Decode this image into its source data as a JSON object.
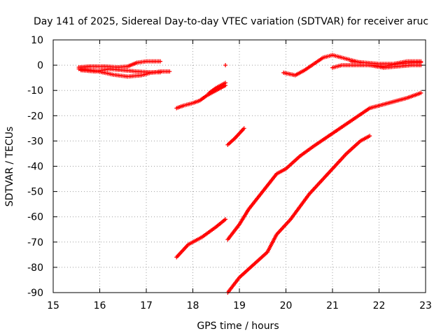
{
  "chart_data": {
    "type": "scatter",
    "title": "Day 141 of 2025, Sidereal Day-to-day VTEC variation (SDTVAR) for receiver aruc",
    "xlabel": "GPS time / hours",
    "ylabel": "SDTVAR / TECUs",
    "xlim": [
      15,
      23
    ],
    "ylim": [
      -90,
      10
    ],
    "xticks": [
      "15",
      "16",
      "17",
      "18",
      "19",
      "20",
      "21",
      "22",
      "23"
    ],
    "yticks": [
      "10",
      "0",
      "-10",
      "-20",
      "-30",
      "-40",
      "-50",
      "-60",
      "-70",
      "-80",
      "-90"
    ],
    "grid": true,
    "marker": "+",
    "color": "#ff0000",
    "series": [
      {
        "x": [
          15.55,
          15.7,
          15.9,
          16.1,
          16.3,
          16.6,
          16.9,
          17.1,
          17.3,
          17.5
        ],
        "y": [
          -1.5,
          -1.7,
          -2.2,
          -3.0,
          -3.8,
          -4.5,
          -4.0,
          -3.0,
          -2.5,
          -2.5
        ]
      },
      {
        "x": [
          15.55,
          15.8,
          16.1,
          16.4,
          16.6,
          16.8,
          17.0,
          17.3
        ],
        "y": [
          -0.8,
          -0.5,
          -0.5,
          -0.8,
          -0.5,
          1.0,
          1.5,
          1.5
        ]
      },
      {
        "x": [
          15.6,
          15.9,
          16.2,
          16.5,
          16.8,
          17.1,
          17.3
        ],
        "y": [
          -2.0,
          -2.5,
          -1.5,
          -2.0,
          -2.5,
          -2.8,
          -2.8
        ]
      },
      {
        "x": [
          18.7
        ],
        "y": [
          0
        ]
      },
      {
        "x": [
          17.65,
          17.8,
          18.0,
          18.15,
          18.3,
          18.5,
          18.7
        ],
        "y": [
          -17,
          -16,
          -15,
          -14,
          -12,
          -10,
          -8
        ]
      },
      {
        "x": [
          18.35,
          18.5,
          18.7
        ],
        "y": [
          -11,
          -9,
          -7
        ]
      },
      {
        "x": [
          18.75,
          18.9,
          19.1
        ],
        "y": [
          -31.5,
          -29,
          -25
        ]
      },
      {
        "x": [
          17.65,
          17.9,
          18.2,
          18.5,
          18.7
        ],
        "y": [
          -76,
          -71,
          -68,
          -64,
          -61
        ]
      },
      {
        "x": [
          18.75,
          19.0,
          19.2,
          19.5,
          19.8,
          20.0,
          20.3,
          20.6,
          21.0,
          21.4,
          21.8,
          22.2,
          22.6,
          22.9
        ],
        "y": [
          -69,
          -63,
          -57,
          -50,
          -43,
          -41,
          -36,
          -32,
          -27,
          -22,
          -17,
          -15,
          -13,
          -11
        ]
      },
      {
        "x": [
          18.75,
          19.0,
          19.3,
          19.6,
          19.8,
          20.1,
          20.5,
          20.9,
          21.3,
          21.6,
          21.8
        ],
        "y": [
          -90,
          -84,
          -79,
          -74,
          -67,
          -61,
          -51,
          -43,
          -35,
          -30,
          -28
        ]
      },
      {
        "x": [
          19.95,
          20.2,
          20.4,
          20.6,
          20.8,
          21.0,
          21.2,
          21.4,
          21.6
        ],
        "y": [
          -3,
          -4,
          -2,
          0.5,
          3,
          4,
          3,
          2,
          1
        ]
      },
      {
        "x": [
          21.0,
          21.2,
          21.5,
          21.8,
          22.1,
          22.4,
          22.7,
          22.9
        ],
        "y": [
          -1,
          0,
          0,
          0,
          -0.5,
          0.5,
          1,
          1
        ]
      },
      {
        "x": [
          21.4,
          21.7,
          22.0,
          22.3,
          22.6,
          22.9
        ],
        "y": [
          1.5,
          1.0,
          0.5,
          0.5,
          1.5,
          1.5
        ]
      },
      {
        "x": [
          21.8,
          22.1,
          22.4,
          22.7,
          22.9
        ],
        "y": [
          0,
          -1,
          -0.5,
          0,
          0
        ]
      }
    ]
  }
}
